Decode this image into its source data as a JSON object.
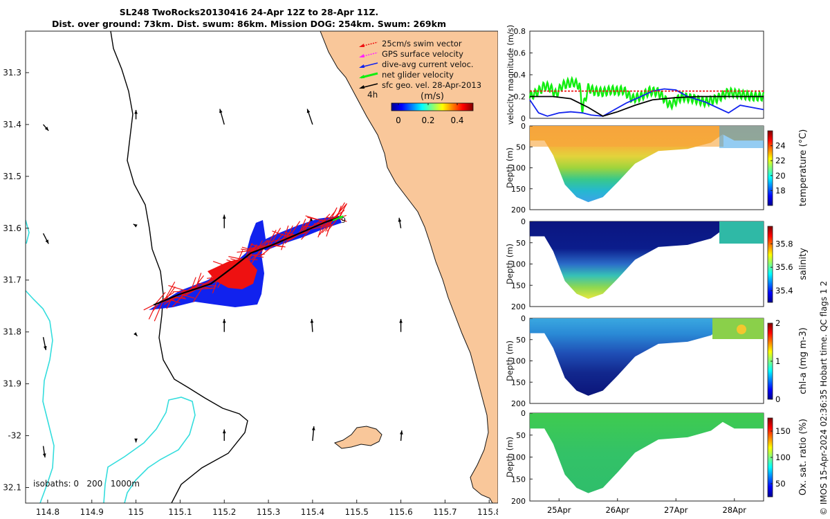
{
  "header": {
    "line1": "SL248 TwoRocks20130416 24-Apr 12Z to 28-Apr 11Z.",
    "line2": "Dist. over ground: 73km. Dist. swum: 86km. Mission DOG: 254km. Swum: 269km"
  },
  "colors": {
    "land": "#f9c79a",
    "coast": "#111111",
    "isobath_200": "#000000",
    "isobath_1000": "#33dddd",
    "swim": "#ee1111",
    "gps": "#ff22ff",
    "dive_avg": "#1122ee",
    "net": "#11ee11",
    "geo": "#000000"
  },
  "chart_data": [
    {
      "type": "map",
      "name": "glider-track-map",
      "xlim": [
        114.75,
        115.82
      ],
      "ylim": [
        -32.13,
        -31.22
      ],
      "x_ticks": [
        114.8,
        114.9,
        115,
        115.1,
        115.2,
        115.3,
        115.4,
        115.5,
        115.6,
        115.7,
        115.8
      ],
      "x_tick_labels": [
        "114.8",
        "114.9",
        "115",
        "115.1",
        "115.2",
        "115.3",
        "115.4",
        "115.5",
        "115.6",
        "115.7",
        "115.8"
      ],
      "y_ticks": [
        -31.3,
        -31.4,
        -31.5,
        -31.6,
        -31.7,
        -31.8,
        -31.9,
        -32.0,
        -32.1
      ],
      "y_tick_labels": [
        "31.3",
        "31.4",
        "31.5",
        "31.6",
        "31.7",
        "31.8",
        "31.9",
        "-32",
        "32.1"
      ],
      "legend": [
        {
          "label": "25cm/s swim vector",
          "color_key": "swim"
        },
        {
          "label": "GPS surface velocity",
          "color_key": "gps"
        },
        {
          "label": "dive-avg current veloc.",
          "color_key": "dive_avg"
        },
        {
          "label": "net glider velocity",
          "color_key": "net"
        },
        {
          "label": "sfc geo. vel. 28-Apr-2013",
          "color_key": "geo"
        }
      ],
      "colorbar": {
        "unit": "(m/s)",
        "ticks": [
          "0",
          "0.2",
          "0.4"
        ],
        "range": [
          0,
          0.5
        ]
      },
      "track_labels": {
        "start": "4h",
        "end": "9"
      },
      "isobaths_label": "isobaths: 0   200   1000m",
      "track": [
        {
          "lon": 115.04,
          "lat": -31.748
        },
        {
          "lon": 115.1,
          "lat": -31.727
        },
        {
          "lon": 115.17,
          "lat": -31.707
        },
        {
          "lon": 115.22,
          "lat": -31.675
        },
        {
          "lon": 115.26,
          "lat": -31.648
        },
        {
          "lon": 115.31,
          "lat": -31.632
        },
        {
          "lon": 115.37,
          "lat": -31.61
        },
        {
          "lon": 115.43,
          "lat": -31.588
        },
        {
          "lon": 115.465,
          "lat": -31.578
        }
      ],
      "geo_vectors": [
        {
          "lon": 114.79,
          "lat": -31.4,
          "dlon": 0.012,
          "dlat": -0.012
        },
        {
          "lon": 115.0,
          "lat": -31.39,
          "dlon": 0.0,
          "dlat": 0.018
        },
        {
          "lon": 115.2,
          "lat": -31.4,
          "dlon": -0.01,
          "dlat": 0.03
        },
        {
          "lon": 115.4,
          "lat": -31.4,
          "dlon": -0.012,
          "dlat": 0.03
        },
        {
          "lon": 114.79,
          "lat": -31.61,
          "dlon": 0.012,
          "dlat": -0.02
        },
        {
          "lon": 115.0,
          "lat": -31.595,
          "dlon": -0.006,
          "dlat": 0.003
        },
        {
          "lon": 115.2,
          "lat": -31.6,
          "dlon": 0.0,
          "dlat": 0.026
        },
        {
          "lon": 115.4,
          "lat": -31.605,
          "dlon": -0.004,
          "dlat": 0.026
        },
        {
          "lon": 115.6,
          "lat": -31.6,
          "dlon": -0.004,
          "dlat": 0.02
        },
        {
          "lon": 114.79,
          "lat": -31.81,
          "dlon": 0.006,
          "dlat": -0.025
        },
        {
          "lon": 115.0,
          "lat": -31.805,
          "dlon": 0.003,
          "dlat": -0.003
        },
        {
          "lon": 115.2,
          "lat": -31.8,
          "dlon": 0.0,
          "dlat": 0.025
        },
        {
          "lon": 115.4,
          "lat": -31.8,
          "dlon": -0.002,
          "dlat": 0.025
        },
        {
          "lon": 115.6,
          "lat": -31.8,
          "dlon": 0.0,
          "dlat": 0.025
        },
        {
          "lon": 114.79,
          "lat": -32.02,
          "dlon": 0.004,
          "dlat": -0.022
        },
        {
          "lon": 115.0,
          "lat": -32.01,
          "dlon": 0.0,
          "dlat": -0.003
        },
        {
          "lon": 115.2,
          "lat": -32.01,
          "dlon": 0.0,
          "dlat": 0.022
        },
        {
          "lon": 115.4,
          "lat": -32.01,
          "dlon": 0.003,
          "dlat": 0.028
        },
        {
          "lon": 115.6,
          "lat": -32.01,
          "dlon": 0.002,
          "dlat": 0.02
        }
      ]
    },
    {
      "type": "line",
      "name": "velocity-magnitude-plot",
      "ylabel": "velocity magnitude (m/s)",
      "ylim": [
        0,
        0.8
      ],
      "y_ticks": [
        0,
        0.2,
        0.4,
        0.6,
        0.8
      ],
      "y_tick_labels": [
        "0",
        "0.2",
        "0.4",
        "0.6",
        "0.8"
      ],
      "xlim": [
        24.5,
        28.5
      ],
      "series": [
        {
          "name": "net glider velocity",
          "color_key": "net",
          "x": [
            24.5,
            24.6,
            24.7,
            24.75,
            24.85,
            24.95,
            25.05,
            25.15,
            25.25,
            25.35,
            25.4,
            25.5,
            25.6,
            25.75,
            25.9,
            26.0,
            26.1,
            26.25,
            26.4,
            26.55,
            26.7,
            26.9,
            27.1,
            27.3,
            27.5,
            27.7,
            27.9,
            28.1,
            28.3,
            28.5
          ],
          "y": [
            0.2,
            0.23,
            0.27,
            0.3,
            0.28,
            0.22,
            0.3,
            0.32,
            0.33,
            0.3,
            0.08,
            0.28,
            0.25,
            0.24,
            0.26,
            0.25,
            0.26,
            0.18,
            0.2,
            0.25,
            0.24,
            0.12,
            0.2,
            0.18,
            0.15,
            0.18,
            0.24,
            0.22,
            0.2,
            0.2
          ]
        },
        {
          "name": "dive-avg current veloc.",
          "color_key": "dive_avg",
          "x": [
            24.5,
            24.65,
            24.8,
            25.0,
            25.2,
            25.4,
            25.55,
            25.75,
            25.95,
            26.15,
            26.4,
            26.6,
            26.8,
            27.0,
            27.2,
            27.5,
            27.7,
            27.9,
            28.1,
            28.3,
            28.5
          ],
          "y": [
            0.17,
            0.05,
            0.02,
            0.05,
            0.06,
            0.05,
            0.03,
            0.02,
            0.08,
            0.14,
            0.2,
            0.25,
            0.27,
            0.26,
            0.2,
            0.15,
            0.1,
            0.05,
            0.12,
            0.1,
            0.08
          ]
        },
        {
          "name": "net path speed",
          "color_key": "geo",
          "x": [
            24.5,
            24.9,
            25.2,
            25.5,
            25.75,
            26.0,
            26.3,
            26.6,
            27.0,
            27.4,
            27.8,
            28.2,
            28.5
          ],
          "y": [
            0.2,
            0.2,
            0.18,
            0.1,
            0.02,
            0.06,
            0.12,
            0.17,
            0.19,
            0.2,
            0.2,
            0.2,
            0.2
          ]
        },
        {
          "name": "swim speed",
          "color_key": "swim",
          "x": [
            24.5,
            25.0,
            25.5,
            26.0,
            26.5,
            27.0,
            27.5,
            28.0,
            28.5
          ],
          "y": [
            0.25,
            0.25,
            0.25,
            0.25,
            0.25,
            0.25,
            0.25,
            0.25,
            0.25
          ]
        }
      ]
    },
    {
      "type": "heatmap",
      "name": "temperature-section",
      "ylabel": "Depth (m)",
      "ylim": [
        200,
        0
      ],
      "y_ticks": [
        0,
        50,
        100,
        150,
        200
      ],
      "y_tick_labels": [
        "0",
        "50",
        "100",
        "150",
        "200"
      ],
      "colorbar_label": "temperature (°C)",
      "colorbar_ticks": [
        "24",
        "22",
        "20",
        "18"
      ],
      "colorbar_tick_values": [
        24,
        22,
        20,
        18
      ],
      "clim": [
        16,
        26
      ],
      "profile": [
        {
          "t": 24.5,
          "depth": 35
        },
        {
          "t": 24.75,
          "depth": 35
        },
        {
          "t": 24.9,
          "depth": 70
        },
        {
          "t": 25.1,
          "depth": 140
        },
        {
          "t": 25.3,
          "depth": 170
        },
        {
          "t": 25.5,
          "depth": 182
        },
        {
          "t": 25.75,
          "depth": 170
        },
        {
          "t": 26.0,
          "depth": 135
        },
        {
          "t": 26.3,
          "depth": 90
        },
        {
          "t": 26.7,
          "depth": 60
        },
        {
          "t": 27.2,
          "depth": 55
        },
        {
          "t": 27.6,
          "depth": 40
        },
        {
          "t": 27.8,
          "depth": 20
        },
        {
          "t": 28.0,
          "depth": 35
        },
        {
          "t": 28.5,
          "depth": 35
        }
      ]
    },
    {
      "type": "heatmap",
      "name": "salinity-section",
      "ylabel": "Depth (m)",
      "ylim": [
        200,
        0
      ],
      "y_ticks": [
        0,
        50,
        100,
        150,
        200
      ],
      "y_tick_labels": [
        "0",
        "50",
        "100",
        "150",
        "200"
      ],
      "colorbar_label": "salinity",
      "colorbar_ticks": [
        "35.8",
        "35.6",
        "35.4"
      ],
      "colorbar_tick_values": [
        35.8,
        35.6,
        35.4
      ],
      "clim": [
        35.3,
        35.95
      ],
      "profile": [
        {
          "t": 24.5,
          "depth": 35
        },
        {
          "t": 24.75,
          "depth": 35
        },
        {
          "t": 24.9,
          "depth": 70
        },
        {
          "t": 25.1,
          "depth": 140
        },
        {
          "t": 25.3,
          "depth": 170
        },
        {
          "t": 25.5,
          "depth": 182
        },
        {
          "t": 25.75,
          "depth": 170
        },
        {
          "t": 26.0,
          "depth": 135
        },
        {
          "t": 26.3,
          "depth": 90
        },
        {
          "t": 26.7,
          "depth": 60
        },
        {
          "t": 27.2,
          "depth": 55
        },
        {
          "t": 27.6,
          "depth": 40
        },
        {
          "t": 27.8,
          "depth": 20
        },
        {
          "t": 28.0,
          "depth": 35
        },
        {
          "t": 28.5,
          "depth": 35
        }
      ]
    },
    {
      "type": "heatmap",
      "name": "chla-section",
      "ylabel": "Depth (m)",
      "ylim": [
        200,
        0
      ],
      "y_ticks": [
        0,
        50,
        100,
        150,
        200
      ],
      "y_tick_labels": [
        "0",
        "50",
        "100",
        "150",
        "200"
      ],
      "colorbar_label": "chl-a (mg m-3)",
      "colorbar_ticks": [
        "2",
        "1",
        "0"
      ],
      "colorbar_tick_values": [
        2,
        1,
        0
      ],
      "clim": [
        0,
        2
      ],
      "profile": [
        {
          "t": 24.5,
          "depth": 35
        },
        {
          "t": 24.75,
          "depth": 35
        },
        {
          "t": 24.9,
          "depth": 70
        },
        {
          "t": 25.1,
          "depth": 140
        },
        {
          "t": 25.3,
          "depth": 170
        },
        {
          "t": 25.5,
          "depth": 182
        },
        {
          "t": 25.75,
          "depth": 170
        },
        {
          "t": 26.0,
          "depth": 135
        },
        {
          "t": 26.3,
          "depth": 90
        },
        {
          "t": 26.7,
          "depth": 60
        },
        {
          "t": 27.2,
          "depth": 55
        },
        {
          "t": 27.6,
          "depth": 40
        },
        {
          "t": 27.8,
          "depth": 20
        },
        {
          "t": 28.0,
          "depth": 35
        },
        {
          "t": 28.5,
          "depth": 35
        }
      ]
    },
    {
      "type": "heatmap",
      "name": "oxygen-section",
      "ylabel": "Depth (m)",
      "ylim": [
        200,
        0
      ],
      "y_ticks": [
        0,
        50,
        100,
        150,
        200
      ],
      "y_tick_labels": [
        "0",
        "50",
        "100",
        "150",
        "200"
      ],
      "colorbar_label": "Ox. sat. ratio (%)",
      "colorbar_ticks": [
        "150",
        "100",
        "50"
      ],
      "colorbar_tick_values": [
        150,
        100,
        50
      ],
      "clim": [
        25,
        175
      ],
      "x_ticks": [
        25,
        26,
        27,
        28
      ],
      "x_tick_labels": [
        "25Apr",
        "26Apr",
        "27Apr",
        "28Apr"
      ],
      "profile": [
        {
          "t": 24.5,
          "depth": 35
        },
        {
          "t": 24.75,
          "depth": 35
        },
        {
          "t": 24.9,
          "depth": 70
        },
        {
          "t": 25.1,
          "depth": 140
        },
        {
          "t": 25.3,
          "depth": 170
        },
        {
          "t": 25.5,
          "depth": 182
        },
        {
          "t": 25.75,
          "depth": 170
        },
        {
          "t": 26.0,
          "depth": 135
        },
        {
          "t": 26.3,
          "depth": 90
        },
        {
          "t": 26.7,
          "depth": 60
        },
        {
          "t": 27.2,
          "depth": 55
        },
        {
          "t": 27.6,
          "depth": 40
        },
        {
          "t": 27.8,
          "depth": 20
        },
        {
          "t": 28.0,
          "depth": 35
        },
        {
          "t": 28.5,
          "depth": 35
        }
      ]
    }
  ],
  "footer": {
    "credit": "© IMOS 15-Apr-2024 02:36:35 Hobart time. QC flags 1  2"
  }
}
